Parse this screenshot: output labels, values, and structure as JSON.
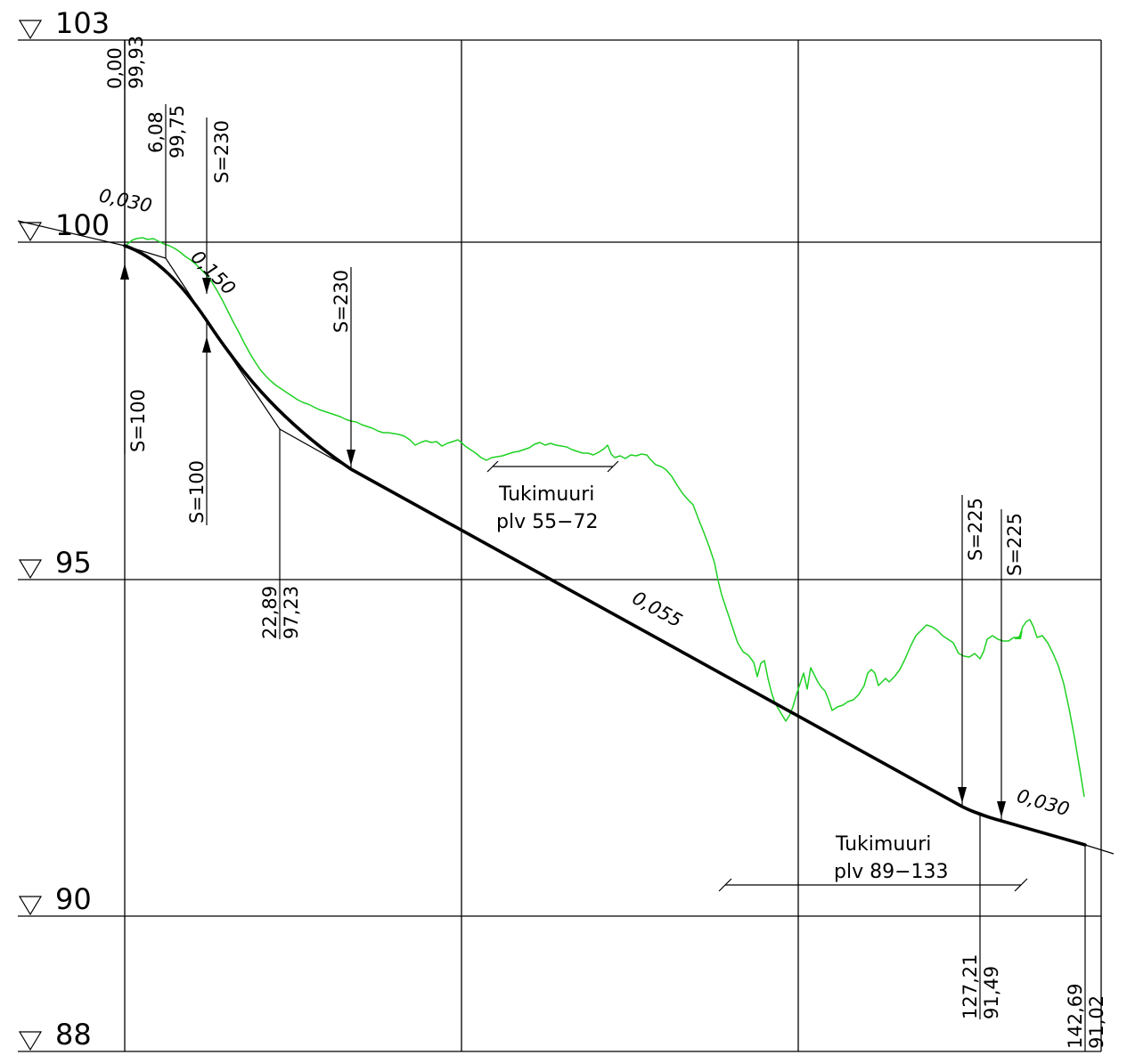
{
  "level_labels": [
    "103",
    "100",
    "95",
    "90",
    "88"
  ],
  "breakpoints": [
    {
      "station": "0,00",
      "elevation": "99,93"
    },
    {
      "station": "6,08",
      "elevation": "99,75"
    },
    {
      "station": "22,89",
      "elevation": "97,23"
    },
    {
      "station": "127,21",
      "elevation": "91,49"
    },
    {
      "station": "142,69",
      "elevation": "91,02"
    }
  ],
  "curves": [
    "S=230",
    "S=100",
    "S=100",
    "S=230",
    "S=225",
    "S=225"
  ],
  "gradients": [
    "0,030",
    "0,150",
    "0,055",
    "0,030"
  ],
  "retaining_walls": [
    {
      "name": "Tukimuuri",
      "range": "plv 55−72"
    },
    {
      "name": "Tukimuuri",
      "range": "plv 89−133"
    }
  ],
  "colors": {
    "ground_line": "#1fd124",
    "design_line": "#000000",
    "grid": "#000000"
  }
}
